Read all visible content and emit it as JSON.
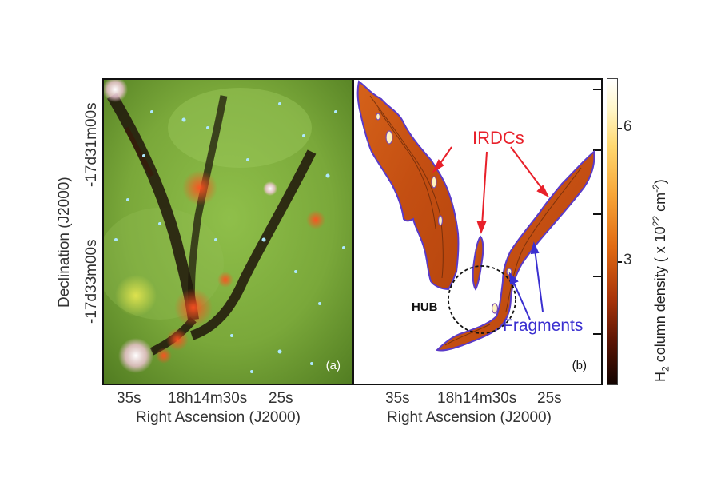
{
  "panel_a": {
    "label": "(a)",
    "y_axis_title": "Declination (J2000)",
    "y_ticks": [
      "-17d31m00s",
      "-17d33m00s"
    ],
    "x_ticks": [
      "35s",
      "18h14m30s",
      "25s"
    ],
    "x_axis_title": "Right Ascension (J2000)"
  },
  "panel_b": {
    "label": "(b)",
    "x_ticks": [
      "35s",
      "18h14m30s",
      "25s"
    ],
    "x_axis_title": "Right Ascension (J2000)",
    "annotations": {
      "irdcs": "IRDCs",
      "hub": "HUB",
      "fragments": "Fragments"
    },
    "annotation_colors": {
      "irdcs": "#e8202a",
      "fragments": "#3a2fd0",
      "hub": "#111111"
    }
  },
  "colorbar": {
    "ticks": [
      "6",
      "3"
    ],
    "title_main": "H",
    "title_sub": "2",
    "title_mid": " column density ( x 10",
    "title_sup": "22",
    "title_unit": " cm",
    "title_sup2": "-2",
    "title_end": ")"
  }
}
